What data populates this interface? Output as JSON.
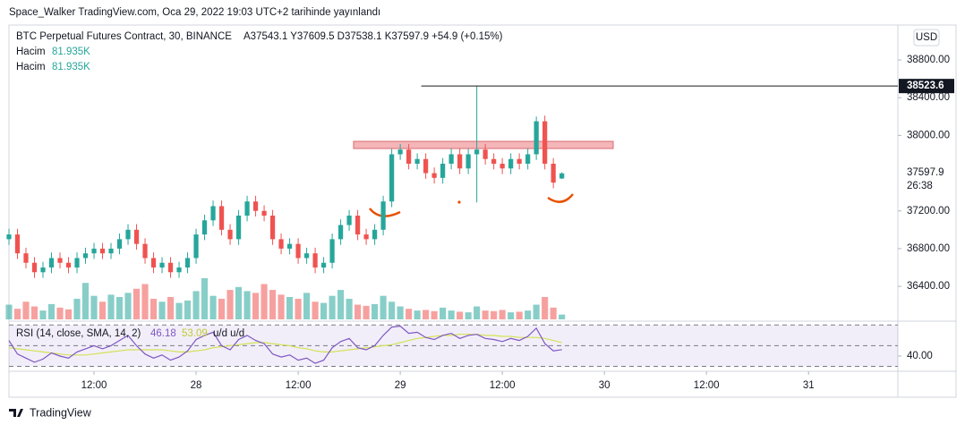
{
  "header": {
    "title": "Space_Walker TradingView.com, Oca 29, 2022 19:03 UTC+2 tarihinde yayınlandı"
  },
  "footer": {
    "brand": "TradingView"
  },
  "chart_data": [
    {
      "type": "candlestick",
      "title": "BTC Perpetual Futures Contract, 30, BINANCE",
      "legend_values": "A37543.1  Y37609.5  D37538.1  K37597.9  +54.9 (+0.15%)",
      "currency": "USD",
      "volume_name": "Hacim",
      "volume_last_label": "81.935K",
      "countdown": "26:38",
      "up_color": "#26a69a",
      "down_color": "#ef5350",
      "open": [
        36900,
        36950,
        36750,
        36650,
        36550,
        36600,
        36700,
        36650,
        36600,
        36700,
        36750,
        36800,
        36750,
        36800,
        36900,
        37000,
        36850,
        36700,
        36600,
        36650,
        36550,
        36600,
        36700,
        36950,
        37100,
        37250,
        37000,
        36900,
        37150,
        37300,
        37200,
        37150,
        36900,
        36800,
        36850,
        36700,
        36750,
        36600,
        36650,
        36900,
        37050,
        37150,
        36950,
        36900,
        37000,
        37300,
        37800,
        37850,
        37700,
        37750,
        37600,
        37550,
        37700,
        37800,
        37650,
        37800,
        37850,
        37750,
        37700,
        37650,
        37750,
        37700,
        37800,
        38150,
        37700,
        37543.1
      ],
      "high": [
        37010,
        37010,
        36810,
        36710,
        36660,
        36760,
        36760,
        36710,
        36760,
        36810,
        36860,
        36860,
        36860,
        36960,
        37060,
        37060,
        36910,
        36760,
        36710,
        36710,
        36660,
        36760,
        37010,
        37160,
        37310,
        37310,
        37060,
        37210,
        37360,
        37360,
        37260,
        37210,
        36960,
        36910,
        36910,
        36810,
        36810,
        36710,
        36960,
        37110,
        37210,
        37210,
        37010,
        37060,
        37360,
        37860,
        37910,
        37910,
        37810,
        37810,
        37660,
        37760,
        37860,
        37860,
        37860,
        38523.6,
        37910,
        37810,
        37760,
        37810,
        37810,
        37860,
        38200,
        38210,
        37760,
        37609.5
      ],
      "low": [
        36840,
        36690,
        36590,
        36490,
        36490,
        36540,
        36590,
        36540,
        36540,
        36640,
        36690,
        36690,
        36690,
        36740,
        36840,
        36790,
        36640,
        36540,
        36540,
        36490,
        36490,
        36540,
        36640,
        36890,
        37040,
        36940,
        36840,
        36840,
        37090,
        37140,
        37090,
        36840,
        36740,
        36740,
        36640,
        36640,
        36540,
        36540,
        36590,
        36840,
        36990,
        36890,
        36840,
        36840,
        36940,
        37240,
        37740,
        37640,
        37640,
        37540,
        37490,
        37490,
        37640,
        37590,
        37590,
        37290,
        37690,
        37640,
        37590,
        37590,
        37640,
        37640,
        37740,
        37640,
        37440,
        37538.1
      ],
      "close": [
        36950,
        36750,
        36650,
        36550,
        36600,
        36700,
        36650,
        36600,
        36700,
        36750,
        36800,
        36750,
        36800,
        36900,
        37000,
        36850,
        36700,
        36600,
        36650,
        36550,
        36600,
        36700,
        36950,
        37100,
        37250,
        37000,
        36900,
        37150,
        37300,
        37200,
        37150,
        36900,
        36800,
        36850,
        36700,
        36750,
        36600,
        36650,
        36900,
        37050,
        37150,
        36950,
        36900,
        37000,
        37300,
        37800,
        37850,
        37700,
        37750,
        37600,
        37550,
        37700,
        37800,
        37650,
        37800,
        37850,
        37750,
        37700,
        37650,
        37750,
        37700,
        37800,
        38150,
        37700,
        37500,
        37597.9
      ],
      "volume": [
        250000,
        180000,
        300000,
        220000,
        150000,
        260000,
        200000,
        170000,
        350000,
        620000,
        400000,
        300000,
        420000,
        380000,
        450000,
        520000,
        600000,
        350000,
        300000,
        380000,
        280000,
        320000,
        480000,
        700000,
        400000,
        350000,
        500000,
        550000,
        480000,
        450000,
        600000,
        500000,
        420000,
        380000,
        350000,
        450000,
        300000,
        280000,
        400000,
        500000,
        350000,
        250000,
        230000,
        260000,
        400000,
        300000,
        220000,
        180000,
        150000,
        160000,
        140000,
        200000,
        150000,
        130000,
        120000,
        220000,
        150000,
        140000,
        160000,
        120000,
        130000,
        150000,
        250000,
        380000,
        200000,
        81935
      ],
      "vlim": [
        0,
        5000000
      ],
      "xlim": [
        0,
        104.5
      ],
      "xticks": [
        {
          "value": 10,
          "label": "12:00"
        },
        {
          "value": 22,
          "label": "28"
        },
        {
          "value": 34,
          "label": "12:00"
        },
        {
          "value": 46,
          "label": "29"
        },
        {
          "value": 58,
          "label": "12:00"
        },
        {
          "value": 70,
          "label": "30"
        },
        {
          "value": 82,
          "label": "12:00"
        },
        {
          "value": 94,
          "label": "31"
        }
      ],
      "ylim": [
        36050,
        39170
      ],
      "yticks": [
        {
          "value": 36400,
          "label": "36400.00"
        },
        {
          "value": 36800,
          "label": "36800.00"
        },
        {
          "value": 37200,
          "label": "37200.00"
        },
        {
          "value": 38000,
          "label": "38000.00"
        },
        {
          "value": 38400,
          "label": "38400.00"
        },
        {
          "value": 38800,
          "label": "38800.00"
        }
      ]
    },
    {
      "type": "line",
      "title": "RSI (14, close, SMA, 14, 2)",
      "extra": "u/d  u/d",
      "series": [
        {
          "color": "#7e57c2",
          "values": [
            55,
            42,
            38,
            34,
            37,
            43,
            40,
            38,
            44,
            47,
            50,
            47,
            50,
            55,
            60,
            50,
            42,
            38,
            41,
            36,
            39,
            45,
            56,
            60,
            63,
            50,
            46,
            56,
            60,
            55,
            52,
            42,
            39,
            41,
            36,
            38,
            33,
            36,
            48,
            54,
            57,
            48,
            46,
            50,
            60,
            68,
            69,
            62,
            63,
            58,
            56,
            60,
            62,
            57,
            60,
            61,
            57,
            56,
            54,
            57,
            55,
            59,
            67,
            52,
            45,
            46.18
          ]
        },
        {
          "color": "#d4e157",
          "values": [
            48,
            47,
            46,
            45,
            44,
            43,
            42,
            41,
            41,
            41,
            42,
            43,
            44,
            45,
            46,
            46,
            46,
            46,
            46,
            45,
            44,
            44,
            45,
            46,
            48,
            49,
            50,
            51,
            52,
            53,
            53,
            52,
            51,
            50,
            48,
            47,
            45,
            44,
            44,
            45,
            46,
            47,
            48,
            49,
            50,
            51,
            53,
            55,
            57,
            58,
            59,
            60,
            60,
            61,
            61,
            61,
            60,
            60,
            59,
            59,
            58,
            58,
            58,
            57,
            55,
            53.09
          ]
        }
      ],
      "levels": [
        30,
        50,
        70
      ],
      "ylim": [
        27,
        72
      ],
      "yticks": [
        {
          "value": 40,
          "label": "40.00"
        }
      ]
    }
  ]
}
